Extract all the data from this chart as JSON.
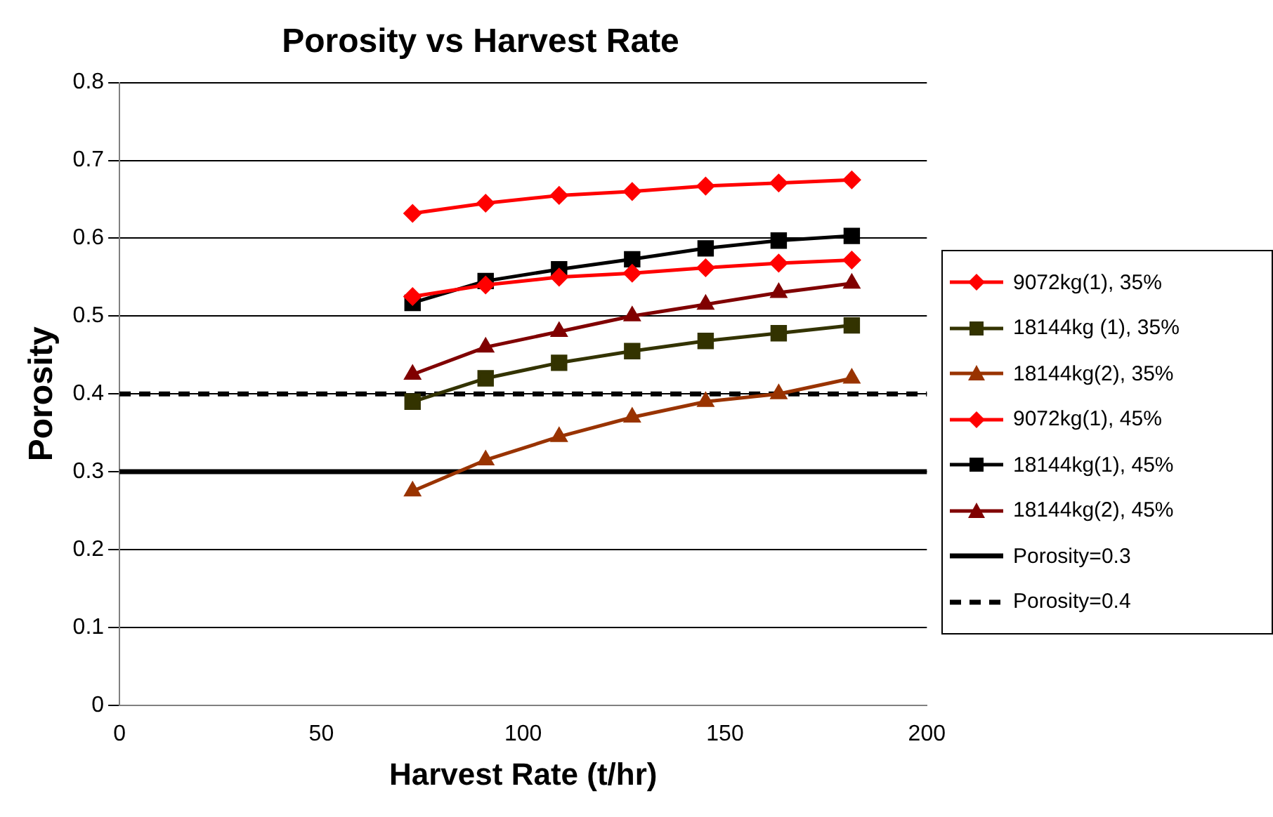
{
  "chart_data": {
    "type": "line",
    "title": "Porosity vs Harvest Rate",
    "xlabel": "Harvest Rate (t/hr)",
    "ylabel": "Porosity",
    "x": [
      72.6,
      90.7,
      108.9,
      127,
      145.2,
      163.3,
      181.4
    ],
    "series": [
      {
        "name": "9072kg(1), 35%",
        "color": "#ff0000",
        "marker": "diamond",
        "values": [
          0.525,
          0.54,
          0.55,
          0.555,
          0.562,
          0.568,
          0.572
        ]
      },
      {
        "name": "18144kg (1), 35%",
        "color": "#333300",
        "marker": "square",
        "values": [
          0.39,
          0.42,
          0.44,
          0.455,
          0.468,
          0.478,
          0.488
        ]
      },
      {
        "name": "18144kg(2), 35%",
        "color": "#993300",
        "marker": "triangle",
        "values": [
          0.275,
          0.315,
          0.345,
          0.37,
          0.39,
          0.4,
          0.42
        ]
      },
      {
        "name": "9072kg(1), 45%",
        "color": "#ff0000",
        "marker": "diamond",
        "values": [
          0.632,
          0.645,
          0.655,
          0.66,
          0.667,
          0.671,
          0.675
        ]
      },
      {
        "name": "18144kg(1), 45%",
        "color": "#000000",
        "marker": "square",
        "values": [
          0.517,
          0.545,
          0.56,
          0.573,
          0.587,
          0.597,
          0.603
        ]
      },
      {
        "name": "18144kg(2), 45%",
        "color": "#800000",
        "marker": "triangle",
        "values": [
          0.425,
          0.46,
          0.48,
          0.5,
          0.515,
          0.53,
          0.542
        ]
      }
    ],
    "ref_lines": [
      {
        "axis": "y",
        "value": 0.3,
        "label": "Porosity=0.3",
        "color": "#000000",
        "line_style": "solid"
      },
      {
        "axis": "y",
        "value": 0.4,
        "label": "Porosity=0.4",
        "color": "#000000",
        "line_style": "dashed"
      }
    ],
    "xlim": [
      0,
      200
    ],
    "xticks": [
      0,
      50,
      100,
      150,
      200
    ],
    "ylim": [
      0,
      0.8
    ],
    "yticks": [
      0,
      0.1,
      0.2,
      0.3,
      0.4,
      0.5,
      0.6,
      0.7,
      0.8
    ],
    "grid": "y",
    "legend": "right",
    "line_style": "solid"
  }
}
